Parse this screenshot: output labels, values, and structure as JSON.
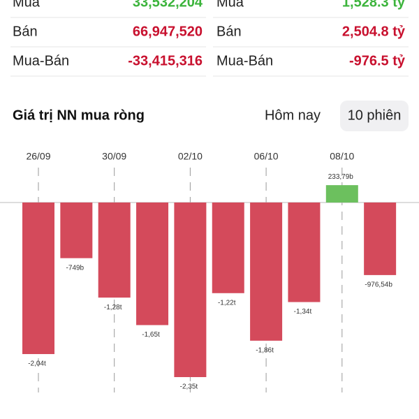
{
  "table": {
    "rows": [
      [
        "Mua",
        "33,532,204",
        "Mua",
        "1,528.3 tỷ"
      ],
      [
        "Bán",
        "66,947,520",
        "Bán",
        "2,504.8 tỷ"
      ],
      [
        "Mua-Bán",
        "-33,415,316",
        "Mua-Bán",
        "-976.5 tỷ"
      ]
    ]
  },
  "tabs": [
    "Hôm nay",
    "10 phiên"
  ],
  "chart_data": {
    "type": "bar",
    "title": "Giá trị NN mua ròng",
    "categories": [
      "26/09",
      null,
      "30/09",
      null,
      "02/10",
      null,
      "06/10",
      null,
      "08/10",
      null
    ],
    "values": [
      -2040,
      -749,
      -1280,
      -1650,
      -2350,
      -1220,
      -1860,
      -1340,
      233.79,
      -976.54
    ],
    "value_labels": [
      "-2,04t",
      "-749b",
      "-1,28t",
      "-1,65t",
      "-2,35t",
      "-1,22t",
      "-1,86t",
      "-1,34t",
      "233,79b",
      "-976,54b"
    ],
    "positive_color": "#6cc05e",
    "negative_color": "#d44a5b"
  }
}
